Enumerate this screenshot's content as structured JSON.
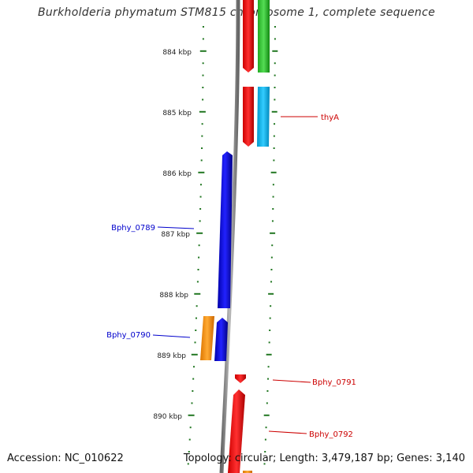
{
  "title": "Burkholderia phymatum STM815 chromosome 1, complete sequence",
  "footer": {
    "accession": "Accession: NC_010622",
    "summary": "Topology: circular; Length: 3,479,187 bp; Genes: 3,140"
  },
  "ticks": [
    "884 kbp",
    "885 kbp",
    "886 kbp",
    "887 kbp",
    "888 kbp",
    "889 kbp",
    "890 kbp"
  ],
  "genes": [
    {
      "name": "thyA",
      "color": "#cc0000"
    },
    {
      "name": "Bphy_0789",
      "color": "#0000cc"
    },
    {
      "name": "Bphy_0790",
      "color": "#0000cc"
    },
    {
      "name": "Bphy_0791",
      "color": "#cc0000"
    },
    {
      "name": "Bphy_0792",
      "color": "#cc0000"
    }
  ],
  "colors": {
    "backbone": "#888888",
    "forward": "#ff0000",
    "reverse": "#0000ee",
    "cds_green": "#33cc33",
    "cds_cyan": "#00bbee",
    "cds_orange": "#ff9900",
    "tick": "#227722"
  }
}
